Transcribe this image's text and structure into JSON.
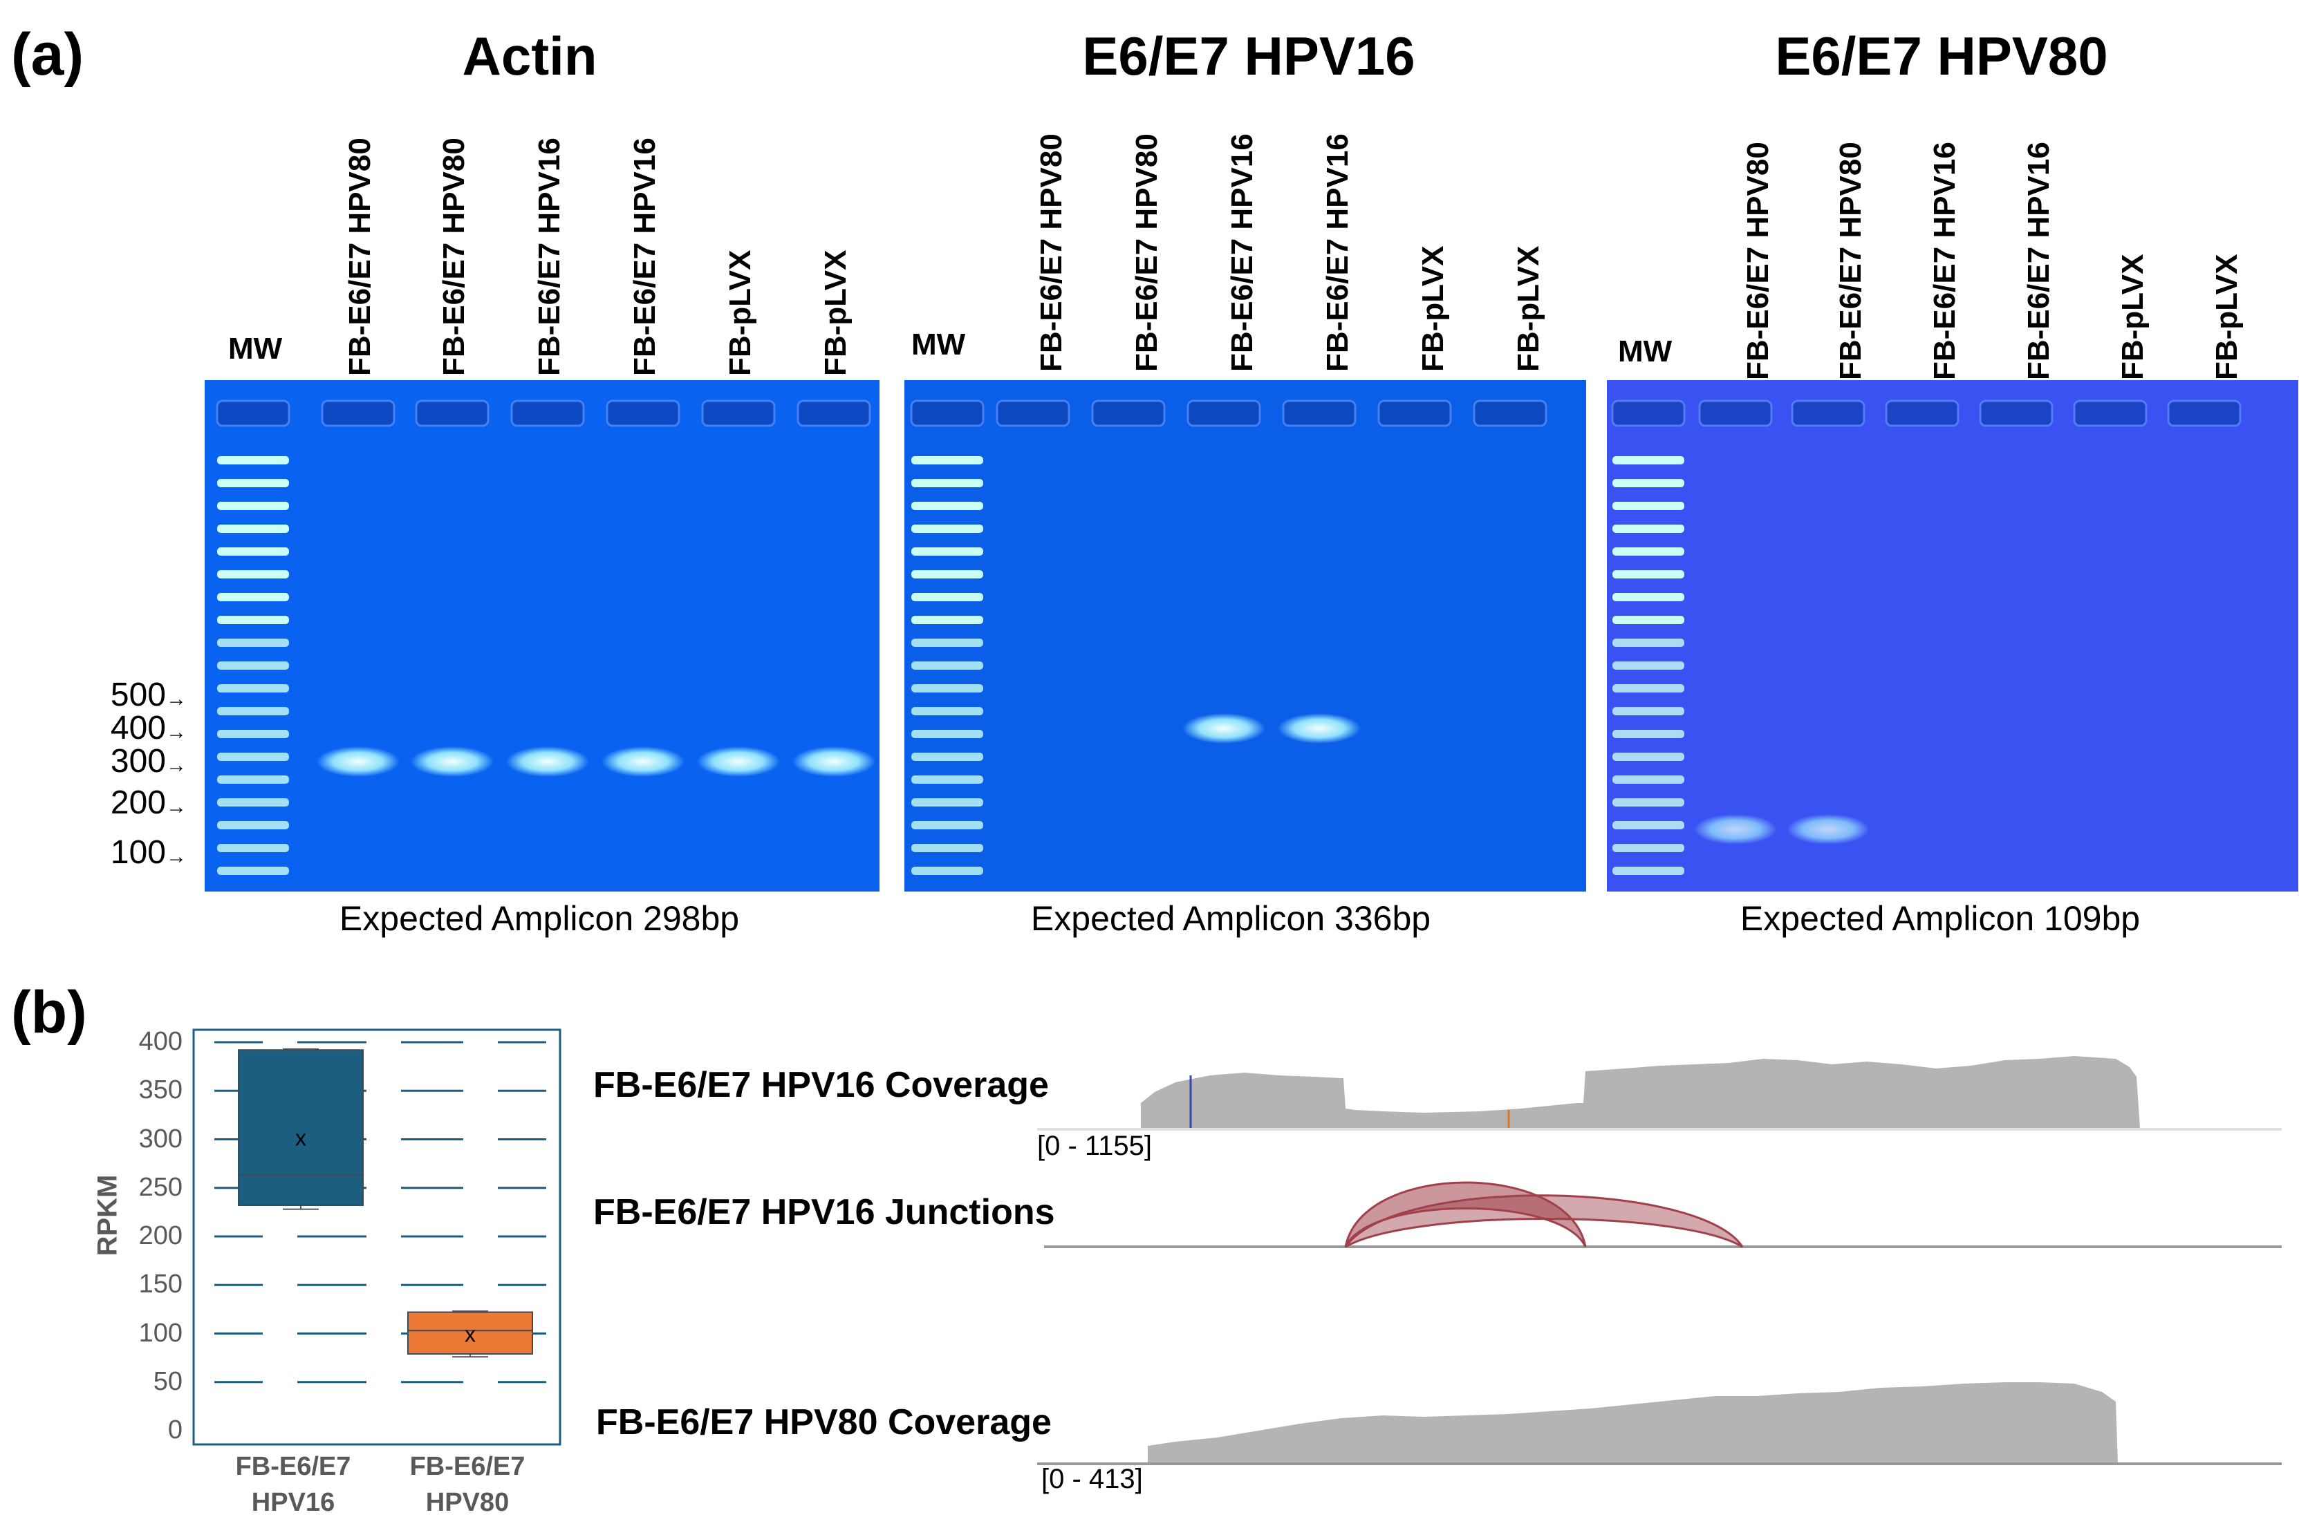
{
  "panel_a": {
    "letter": "(a)",
    "gels": [
      {
        "title": "Actin",
        "mw_label": "MW",
        "lanes": [
          "FB-E6/E7 HPV80",
          "FB-E6/E7 HPV80",
          "FB-E6/E7 HPV16",
          "FB-E6/E7 HPV16",
          "FB-pLVX",
          "FB-pLVX"
        ],
        "caption": "Expected Amplicon 298bp",
        "bg": "#0a63f0",
        "bands_in_lanes": [
          1,
          1,
          1,
          1,
          1,
          1
        ]
      },
      {
        "title": "E6/E7 HPV16",
        "mw_label": "MW",
        "lanes": [
          "FB-E6/E7 HPV80",
          "FB-E6/E7 HPV80",
          "FB-E6/E7 HPV16",
          "FB-E6/E7 HPV16",
          "FB-pLVX",
          "FB-pLVX"
        ],
        "caption": "Expected Amplicon 336bp",
        "bg": "#0b5ee8",
        "bands_in_lanes": [
          0,
          0,
          1,
          1,
          0,
          0
        ]
      },
      {
        "title": "E6/E7 HPV80",
        "mw_label": "MW",
        "lanes": [
          "FB-E6/E7 HPV80",
          "FB-E6/E7 HPV80",
          "FB-E6/E7 HPV16",
          "FB-E6/E7 HPV16",
          "FB-pLVX",
          "FB-pLVX"
        ],
        "caption": "Expected Amplicon 109bp",
        "bg": "#3b52f2",
        "bands_in_lanes": [
          1,
          1,
          0,
          0,
          0,
          0
        ]
      }
    ],
    "size_markers": [
      "500",
      "400",
      "300",
      "200",
      "100"
    ]
  },
  "panel_b": {
    "letter": "(b)",
    "boxplot": {
      "ylabel": "RPKM",
      "yticks": [
        "400",
        "350",
        "300",
        "250",
        "200",
        "150",
        "100",
        "50",
        "0"
      ],
      "ylim": [
        0,
        400
      ],
      "categories": [
        {
          "line1": "FB-E6/E7",
          "line2": "HPV16",
          "color": "#1b5e7f",
          "whisker_low": 228,
          "q1": 232,
          "median": 263,
          "mean": 302,
          "q3": 392,
          "whisker_high": 393,
          "mean_marker": "x"
        },
        {
          "line1": "FB-E6/E7",
          "line2": "HPV80",
          "color": "#ec7a36",
          "whisker_low": 76,
          "q1": 79,
          "median": 103,
          "mean": 100,
          "q3": 122,
          "whisker_high": 123,
          "mean_marker": "x"
        }
      ]
    },
    "tracks": {
      "hpv16_coverage_label": "FB-E6/E7 HPV16 Coverage",
      "hpv16_coverage_range": "[0 - 1155]",
      "hpv16_junctions_label": "FB-E6/E7 HPV16 Junctions",
      "hpv80_coverage_label": "FB-E6/E7 HPV80 Coverage",
      "hpv80_coverage_range": "[0 - 413]",
      "coverage_color": "#b4b4b4",
      "junction_color": "#a0404a"
    }
  }
}
